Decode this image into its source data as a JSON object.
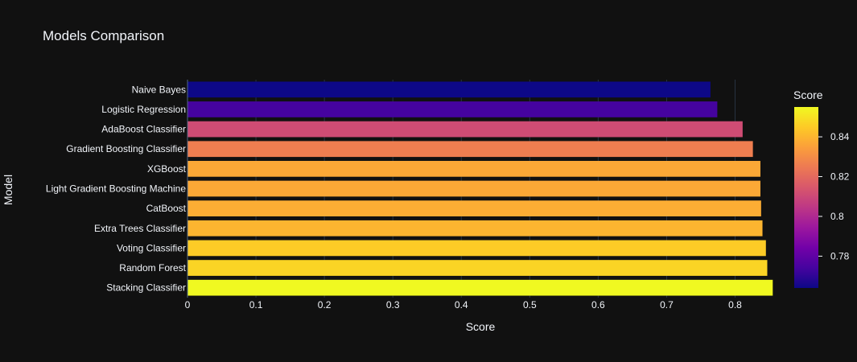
{
  "chart_data": {
    "type": "bar",
    "orientation": "horizontal",
    "title": "Models Comparison",
    "xlabel": "Score",
    "ylabel": "Model",
    "xlim": [
      0,
      0.857
    ],
    "x_ticks": [
      "0",
      "0.1",
      "0.2",
      "0.3",
      "0.4",
      "0.5",
      "0.6",
      "0.7",
      "0.8"
    ],
    "grid": true,
    "categories": [
      "Naive Bayes",
      "Logistic Regression",
      "AdaBoost Classifier",
      "Gradient Boosting Classifier",
      "XGBoost",
      "Light Gradient Boosting Machine",
      "CatBoost",
      "Extra Trees Classifier",
      "Voting Classifier",
      "Random Forest",
      "Stacking Classifier"
    ],
    "values": [
      0.764,
      0.774,
      0.811,
      0.826,
      0.837,
      0.837,
      0.838,
      0.84,
      0.845,
      0.847,
      0.855
    ],
    "colorbar": {
      "title": "Score",
      "min": 0.764,
      "max": 0.855,
      "ticks": [
        "0.78",
        "0.8",
        "0.82",
        "0.84"
      ],
      "tick_values": [
        0.78,
        0.8,
        0.82,
        0.84
      ],
      "colorscale": [
        "#0d0887",
        "#46039f",
        "#7201a8",
        "#9c179e",
        "#bd3786",
        "#d8576b",
        "#ed7953",
        "#fb9f3a",
        "#fdca26",
        "#f0f921"
      ]
    }
  },
  "background": "#111111",
  "text_color": "#f2f5fa",
  "grid_color": "#283442"
}
